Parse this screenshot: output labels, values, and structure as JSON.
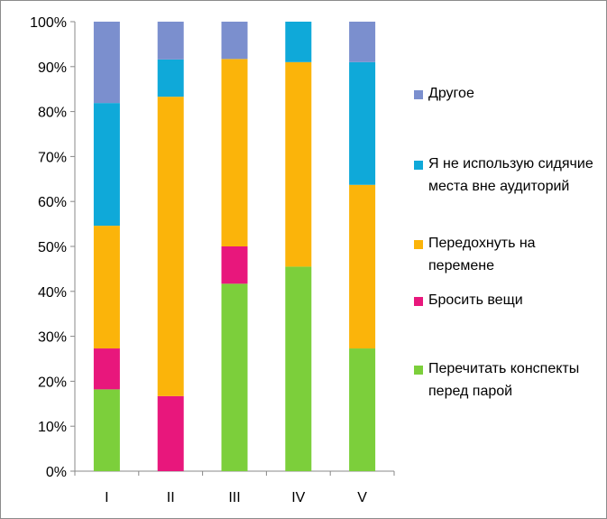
{
  "chart_data": {
    "type": "bar",
    "stacked": true,
    "percent_stacked": true,
    "categories": [
      "I",
      "II",
      "III",
      "IV",
      "V"
    ],
    "series": [
      {
        "name": "Перечитать конспекты перед парой",
        "color": "#7ccf3b",
        "values": [
          18.2,
          0,
          41.7,
          45.5,
          27.3
        ]
      },
      {
        "name": "Бросить вещи",
        "color": "#e8177c",
        "values": [
          9.1,
          16.7,
          8.3,
          0,
          0
        ]
      },
      {
        "name": "Передохнуть на перемене",
        "color": "#fbb40a",
        "values": [
          27.3,
          66.6,
          41.7,
          45.5,
          36.4
        ]
      },
      {
        "name": "Я не использую сидячие места вне аудиторий",
        "color": "#0fa9d9",
        "values": [
          27.3,
          8.3,
          0,
          9.0,
          27.3
        ]
      },
      {
        "name": "Другое",
        "color": "#7b8fce",
        "values": [
          18.1,
          8.4,
          8.3,
          0,
          9.0
        ]
      }
    ],
    "y_ticks": [
      "0%",
      "10%",
      "20%",
      "30%",
      "40%",
      "50%",
      "60%",
      "70%",
      "80%",
      "90%",
      "100%"
    ],
    "ylim": [
      0,
      100
    ],
    "grid": false,
    "legend_position": "right",
    "title": "",
    "xlabel": "",
    "ylabel": ""
  },
  "legend_order": [
    4,
    3,
    2,
    1,
    0
  ]
}
